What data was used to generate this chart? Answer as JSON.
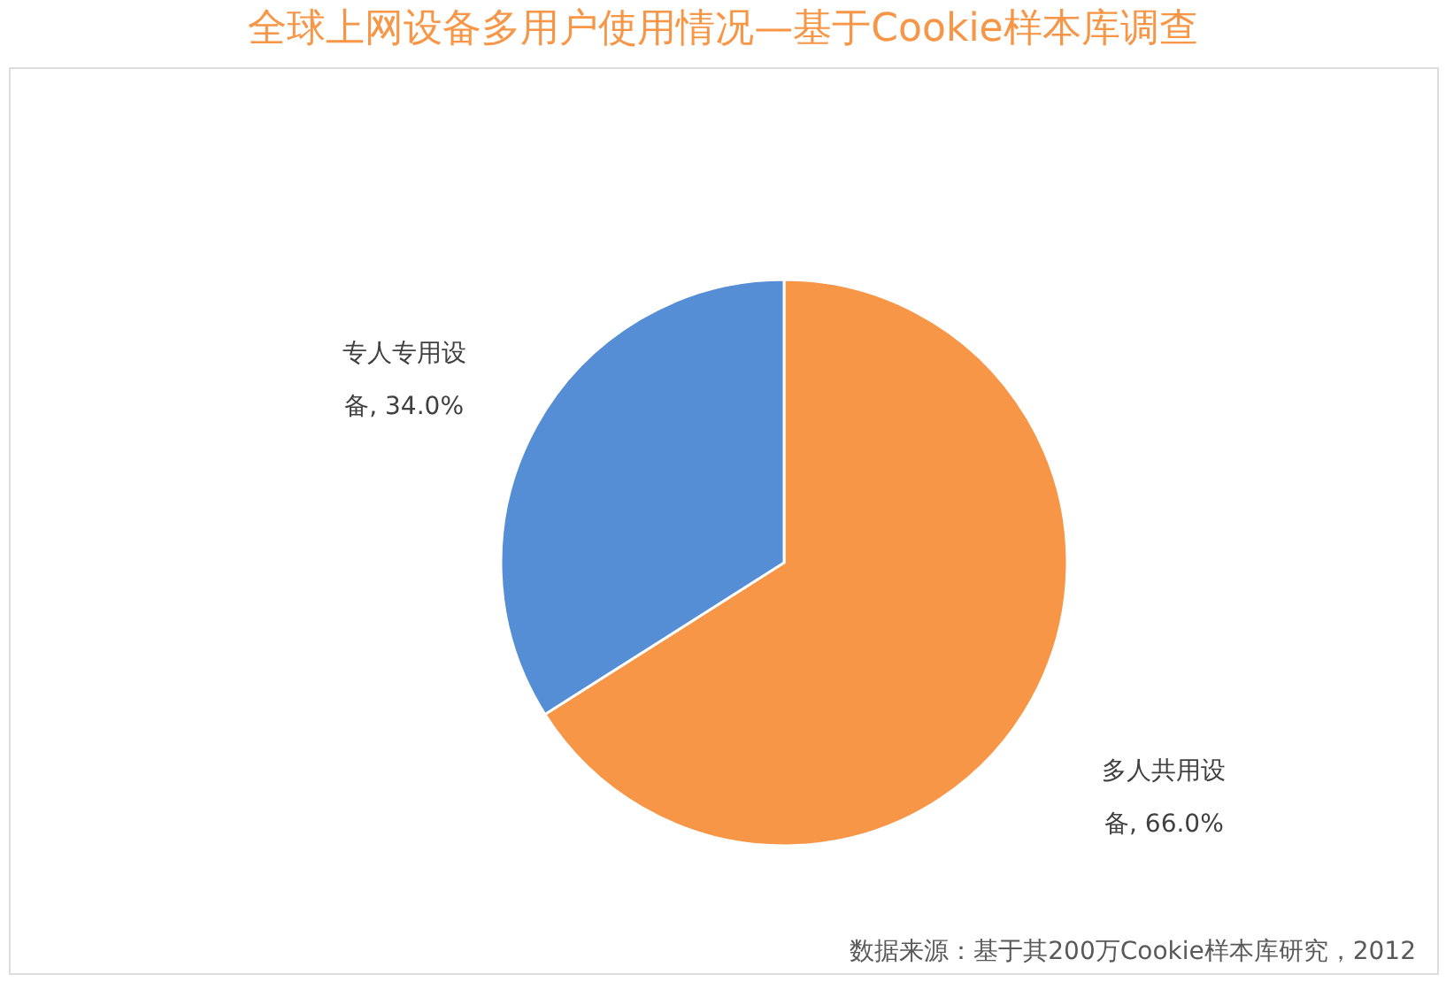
{
  "chart_data": {
    "type": "pie",
    "title": "全球上网设备多用户使用情况—基于Cookie样本库调查",
    "categories": [
      "多人共用设备",
      "专人专用设备"
    ],
    "values": [
      66.0,
      34.0
    ],
    "colors": [
      "#f79646",
      "#558ed5"
    ],
    "value_labels": [
      "66.0%",
      "34.0%"
    ],
    "legend": false,
    "annotations": [
      "数据来源：基于其200万Cookie样本库研究，2012"
    ]
  }
}
